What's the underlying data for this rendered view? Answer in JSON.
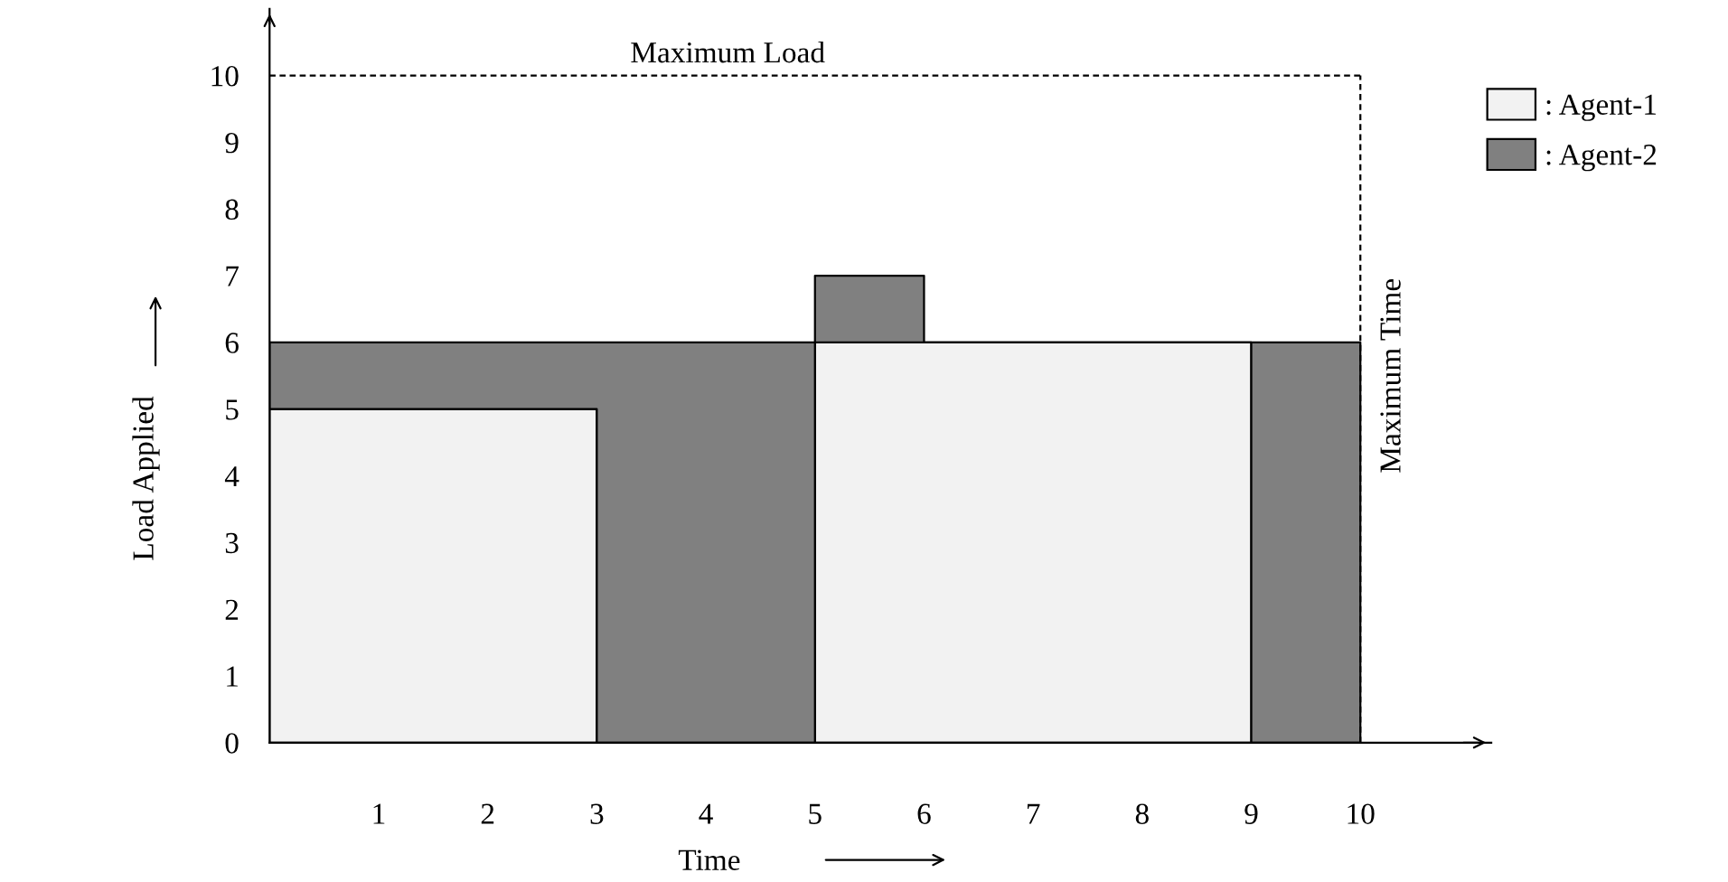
{
  "chart_data": {
    "type": "area",
    "stacked": true,
    "xlabel": "Time",
    "ylabel": "Load Applied",
    "x": [
      0,
      3,
      3,
      5,
      5,
      6,
      6,
      9,
      9,
      10
    ],
    "series": [
      {
        "name": ": Agent-1",
        "color": "#f2f2f2",
        "values": [
          5,
          5,
          0,
          0,
          6,
          6,
          6,
          6,
          0,
          0
        ]
      },
      {
        "name": ": Agent-2",
        "color": "#808080",
        "values": [
          1,
          1,
          6,
          6,
          1,
          1,
          0,
          0,
          6,
          6
        ]
      }
    ],
    "xlim": [
      0,
      11.2
    ],
    "ylim": [
      0,
      11
    ],
    "xticks": [
      1,
      2,
      3,
      4,
      5,
      6,
      7,
      8,
      9,
      10
    ],
    "yticks": [
      0,
      1,
      2,
      3,
      4,
      5,
      6,
      7,
      8,
      9,
      10
    ],
    "ref_lines": [
      {
        "axis": "y",
        "value": 10,
        "label": "Maximum Load",
        "line_style": "dashed",
        "color": "#000000"
      },
      {
        "axis": "x",
        "value": 10,
        "label": "Maximum Time",
        "line_style": "dashed",
        "color": "#000000"
      }
    ],
    "grid": false,
    "legend": "top right"
  }
}
